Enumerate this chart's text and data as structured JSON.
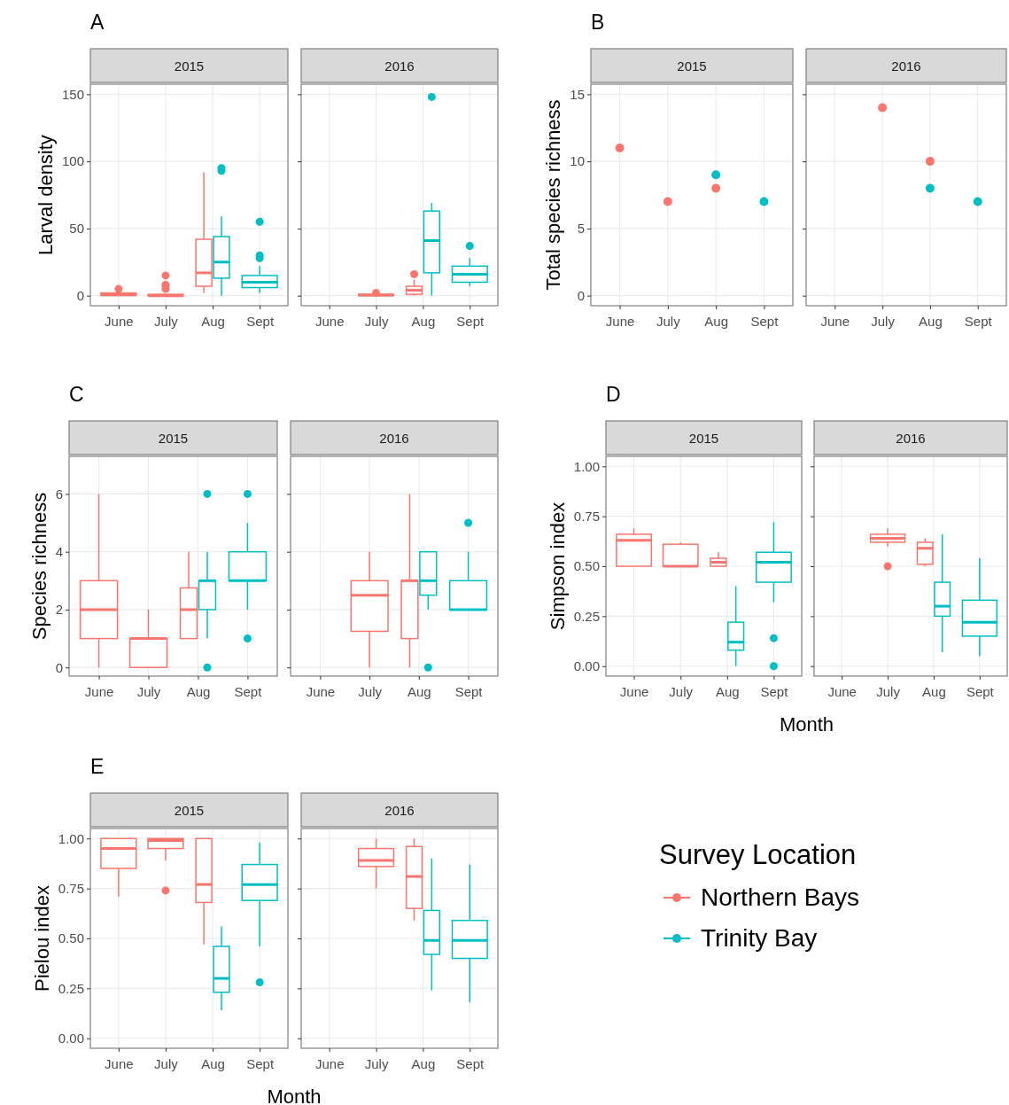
{
  "chart_data": [
    {
      "type": "box",
      "title": "2015",
      "annotations": [
        "A"
      ],
      "ylabel": "Larval density",
      "categories": [
        "June",
        "July",
        "Aug",
        "Sept"
      ],
      "ylim": [
        -7.5,
        157.5
      ],
      "yticks": [
        0,
        50,
        100,
        150
      ],
      "grid": true,
      "series": [
        {
          "color": "#f8766d",
          "boxes": [
            {
              "low": 0,
              "q1": 0,
              "median": 1,
              "q3": 2,
              "high": 2,
              "outliers": [
                5
              ]
            },
            {
              "low": 0,
              "q1": 0,
              "median": 0,
              "q3": 1,
              "high": 1,
              "outliers": [
                5,
                7,
                8,
                15
              ]
            },
            {
              "low": 2,
              "q1": 7,
              "median": 17,
              "q3": 42,
              "high": 92
            },
            null
          ]
        },
        {
          "color": "#00bfc4",
          "boxes": [
            null,
            null,
            {
              "low": 0,
              "q1": 13,
              "median": 25,
              "q3": 44,
              "high": 59,
              "outliers": [
                93,
                95
              ]
            },
            {
              "low": 2,
              "q1": 6,
              "median": 10,
              "q3": 15,
              "high": 22,
              "outliers": [
                28,
                30,
                55
              ]
            }
          ]
        }
      ]
    },
    {
      "type": "box",
      "title": "2016",
      "categories": [
        "June",
        "July",
        "Aug",
        "Sept"
      ],
      "ylim": [
        -7.5,
        157.5
      ],
      "yticks": [
        0,
        50,
        100,
        150
      ],
      "grid": true,
      "tick_labels": "x",
      "series": [
        {
          "color": "#f8766d",
          "boxes": [
            null,
            {
              "low": 0,
              "q1": 0,
              "median": 0.5,
              "q3": 1,
              "high": 1,
              "outliers": [
                2
              ]
            },
            {
              "low": 0,
              "q1": 1,
              "median": 4,
              "q3": 7,
              "high": 12,
              "outliers": [
                16
              ]
            },
            null
          ]
        },
        {
          "color": "#00bfc4",
          "boxes": [
            null,
            null,
            {
              "low": 0,
              "q1": 17,
              "median": 41,
              "q3": 63,
              "high": 69,
              "outliers": [
                148
              ]
            },
            {
              "low": 7,
              "q1": 10,
              "median": 16,
              "q3": 22,
              "high": 28,
              "outliers": [
                37
              ]
            }
          ]
        }
      ]
    },
    {
      "type": "scatter",
      "title": "2015",
      "annotations": [
        "B"
      ],
      "ylabel": "Total species richness",
      "categories": [
        "June",
        "July",
        "Aug",
        "Sept"
      ],
      "ylim": [
        -0.75,
        15.75
      ],
      "yticks": [
        0,
        5,
        10,
        15
      ],
      "grid": true,
      "series": [
        {
          "color": "#f8766d",
          "values": [
            11,
            7,
            8,
            null
          ]
        },
        {
          "color": "#00bfc4",
          "values": [
            null,
            null,
            9,
            7
          ]
        }
      ]
    },
    {
      "type": "scatter",
      "title": "2016",
      "categories": [
        "June",
        "July",
        "Aug",
        "Sept"
      ],
      "ylim": [
        -0.75,
        15.75
      ],
      "yticks": [
        0,
        5,
        10,
        15
      ],
      "grid": true,
      "tick_labels": "x",
      "series": [
        {
          "color": "#f8766d",
          "values": [
            null,
            14,
            10,
            null
          ]
        },
        {
          "color": "#00bfc4",
          "values": [
            null,
            null,
            8,
            7
          ]
        }
      ]
    },
    {
      "type": "box",
      "title": "2015",
      "annotations": [
        "C"
      ],
      "ylabel": "Species richness",
      "categories": [
        "June",
        "July",
        "Aug",
        "Sept"
      ],
      "ylim": [
        -0.3,
        7.3
      ],
      "yticks": [
        0,
        2,
        4,
        6
      ],
      "grid": true,
      "series": [
        {
          "color": "#f8766d",
          "boxes": [
            {
              "low": 0,
              "q1": 1,
              "median": 2,
              "q3": 3,
              "high": 6
            },
            {
              "low": 0,
              "q1": 0,
              "median": 1,
              "q3": 1,
              "high": 2
            },
            {
              "low": 1,
              "q1": 1,
              "median": 2,
              "q3": 2.75,
              "high": 4
            },
            null
          ]
        },
        {
          "color": "#00bfc4",
          "boxes": [
            null,
            null,
            {
              "low": 1,
              "q1": 2,
              "median": 3,
              "q3": 3,
              "high": 4,
              "outliers": [
                0,
                6
              ]
            },
            {
              "low": 2,
              "q1": 3,
              "median": 3,
              "q3": 4,
              "high": 5,
              "outliers": [
                1,
                6
              ]
            }
          ]
        }
      ]
    },
    {
      "type": "box",
      "title": "2016",
      "categories": [
        "June",
        "July",
        "Aug",
        "Sept"
      ],
      "ylim": [
        -0.3,
        7.3
      ],
      "yticks": [
        0,
        2,
        4,
        6
      ],
      "grid": true,
      "tick_labels": "x",
      "series": [
        {
          "color": "#f8766d",
          "boxes": [
            null,
            {
              "low": 0,
              "q1": 1.25,
              "median": 2.5,
              "q3": 3,
              "high": 4
            },
            {
              "low": 0,
              "q1": 1,
              "median": 3,
              "q3": 3,
              "high": 6
            },
            null
          ]
        },
        {
          "color": "#00bfc4",
          "boxes": [
            null,
            null,
            {
              "low": 2,
              "q1": 2.5,
              "median": 3,
              "q3": 4,
              "high": 4,
              "outliers": [
                0
              ]
            },
            {
              "low": 2,
              "q1": 2,
              "median": 2,
              "q3": 3,
              "high": 4,
              "outliers": [
                5
              ]
            }
          ]
        }
      ]
    },
    {
      "type": "box",
      "title": "2015",
      "annotations": [
        "D"
      ],
      "ylabel": "Simpson index",
      "xlabel": "Month",
      "categories": [
        "June",
        "July",
        "Aug",
        "Sept"
      ],
      "ylim": [
        -0.05,
        1.05
      ],
      "yticks": [
        {
          "value": 0,
          "label": "0.00"
        },
        {
          "value": 0.25,
          "label": "0.25"
        },
        {
          "value": 0.5,
          "label": "0.50"
        },
        {
          "value": 0.75,
          "label": "0.75"
        },
        {
          "value": 1,
          "label": "1.00"
        }
      ],
      "grid": true,
      "series": [
        {
          "color": "#f8766d",
          "boxes": [
            {
              "low": 0.5,
              "q1": 0.5,
              "median": 0.63,
              "q3": 0.66,
              "high": 0.69
            },
            {
              "low": 0.5,
              "q1": 0.5,
              "median": 0.5,
              "q3": 0.61,
              "high": 0.62
            },
            {
              "low": 0.5,
              "q1": 0.5,
              "median": 0.52,
              "q3": 0.54,
              "high": 0.57
            },
            null
          ]
        },
        {
          "color": "#00bfc4",
          "boxes": [
            null,
            null,
            {
              "low": 0,
              "q1": 0.08,
              "median": 0.12,
              "q3": 0.22,
              "high": 0.4
            },
            {
              "low": 0.32,
              "q1": 0.42,
              "median": 0.52,
              "q3": 0.57,
              "high": 0.72,
              "outliers": [
                0,
                0.14
              ]
            }
          ]
        }
      ]
    },
    {
      "type": "box",
      "title": "2016",
      "categories": [
        "June",
        "July",
        "Aug",
        "Sept"
      ],
      "ylim": [
        -0.05,
        1.05
      ],
      "yticks": [
        0,
        0.25,
        0.5,
        0.75,
        1
      ],
      "grid": true,
      "tick_labels": "x",
      "series": [
        {
          "color": "#f8766d",
          "boxes": [
            null,
            {
              "low": 0.6,
              "q1": 0.62,
              "median": 0.64,
              "q3": 0.66,
              "high": 0.69,
              "outliers": [
                0.5
              ]
            },
            {
              "low": 0.5,
              "q1": 0.51,
              "median": 0.59,
              "q3": 0.62,
              "high": 0.64
            },
            null
          ]
        },
        {
          "color": "#00bfc4",
          "boxes": [
            null,
            null,
            {
              "low": 0.07,
              "q1": 0.25,
              "median": 0.3,
              "q3": 0.42,
              "high": 0.66
            },
            {
              "low": 0.05,
              "q1": 0.15,
              "median": 0.22,
              "q3": 0.33,
              "high": 0.54
            }
          ]
        }
      ]
    },
    {
      "type": "box",
      "title": "2015",
      "annotations": [
        "E"
      ],
      "ylabel": "Pielou index",
      "xlabel": "Month",
      "categories": [
        "June",
        "July",
        "Aug",
        "Sept"
      ],
      "ylim": [
        -0.05,
        1.05
      ],
      "yticks": [
        {
          "value": 0,
          "label": "0.00"
        },
        {
          "value": 0.25,
          "label": "0.25"
        },
        {
          "value": 0.5,
          "label": "0.50"
        },
        {
          "value": 0.75,
          "label": "0.75"
        },
        {
          "value": 1,
          "label": "1.00"
        }
      ],
      "grid": true,
      "series": [
        {
          "color": "#f8766d",
          "boxes": [
            {
              "low": 0.71,
              "q1": 0.85,
              "median": 0.95,
              "q3": 1,
              "high": 1
            },
            {
              "low": 0.89,
              "q1": 0.95,
              "median": 0.99,
              "q3": 1,
              "high": 1,
              "outliers": [
                0.74
              ]
            },
            {
              "low": 0.47,
              "q1": 0.68,
              "median": 0.77,
              "q3": 1,
              "high": 1
            },
            null
          ]
        },
        {
          "color": "#00bfc4",
          "boxes": [
            null,
            null,
            {
              "low": 0.14,
              "q1": 0.23,
              "median": 0.3,
              "q3": 0.46,
              "high": 0.56
            },
            {
              "low": 0.46,
              "q1": 0.69,
              "median": 0.77,
              "q3": 0.87,
              "high": 0.98,
              "outliers": [
                0.28
              ]
            }
          ]
        }
      ]
    },
    {
      "type": "box",
      "title": "2016",
      "categories": [
        "June",
        "July",
        "Aug",
        "Sept"
      ],
      "ylim": [
        -0.05,
        1.05
      ],
      "yticks": [
        0,
        0.25,
        0.5,
        0.75,
        1
      ],
      "grid": true,
      "tick_labels": "x",
      "legend": "right",
      "legend_title": "Survey Location",
      "series": [
        {
          "name": "Northern Bays",
          "color": "#f8766d",
          "boxes": [
            null,
            {
              "low": 0.75,
              "q1": 0.86,
              "median": 0.89,
              "q3": 0.95,
              "high": 1
            },
            {
              "low": 0.59,
              "q1": 0.65,
              "median": 0.81,
              "q3": 0.96,
              "high": 1
            },
            null
          ]
        },
        {
          "name": "Trinity Bay",
          "color": "#00bfc4",
          "boxes": [
            null,
            null,
            {
              "low": 0.24,
              "q1": 0.42,
              "median": 0.49,
              "q3": 0.64,
              "high": 0.9
            },
            {
              "low": 0.18,
              "q1": 0.4,
              "median": 0.49,
              "q3": 0.59,
              "high": 0.87
            }
          ]
        }
      ]
    }
  ]
}
